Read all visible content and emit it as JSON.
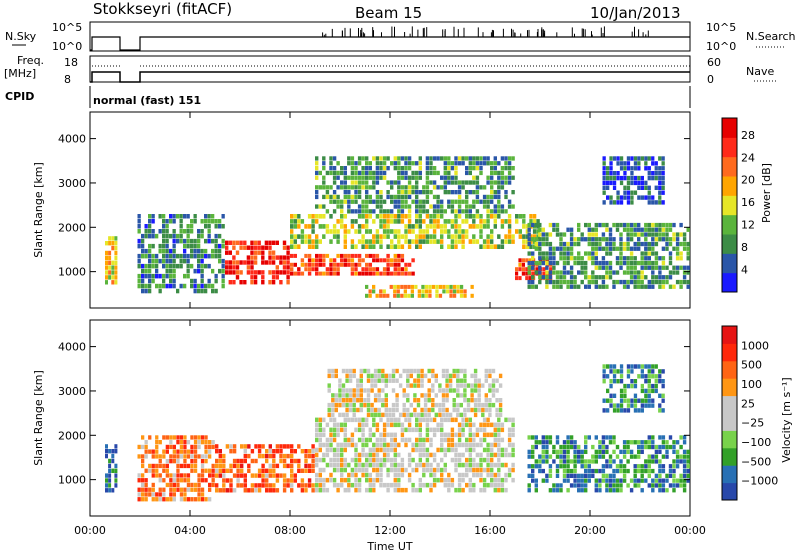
{
  "header": {
    "station": "Stokkseyri (fitACF)",
    "beam": "Beam 15",
    "date": "10/Jan/2013"
  },
  "status_panels": {
    "nsky_label": "N.Sky",
    "nsky_ticks": [
      "10^5",
      "10^0"
    ],
    "nsearch_label": "N.Search",
    "nsearch_ticks": [
      "10^5",
      "10^0"
    ],
    "freq_label": "Freq.",
    "freq_unit": "[MHz]",
    "freq_ticks": [
      "18",
      "8"
    ],
    "nave_label": "Nave",
    "nave_ticks": [
      "60",
      "0"
    ],
    "cpid_label": "CPID",
    "cpid_value": "normal (fast) 151"
  },
  "colors": {
    "power_scale": [
      "#1a1aff",
      "#2a56a8",
      "#3c8c46",
      "#5ab43c",
      "#e6e628",
      "#ffa500",
      "#ff6a1e",
      "#ff2a1a",
      "#e60000"
    ],
    "velocity_scale": [
      "#2848aa",
      "#2870b4",
      "#32a028",
      "#78d24b",
      "#c8c8c8",
      "#c8c8c8",
      "#ff9614",
      "#ff6414",
      "#ff280a",
      "#e61414"
    ]
  },
  "chart_data": [
    {
      "type": "heatmap",
      "name": "power",
      "ylabel": "Slant Range [km]",
      "xlabel": "Time UT",
      "x_ticks": [
        "00:00",
        "04:00",
        "08:00",
        "12:00",
        "16:00",
        "20:00",
        "00:00"
      ],
      "xlim_hours": [
        0,
        24
      ],
      "y_ticks": [
        1000,
        2000,
        3000,
        4000
      ],
      "ylim_km": [
        180,
        4600
      ],
      "colorbar_label": "Power [dB]",
      "colorbar_ticks": [
        4,
        8,
        12,
        16,
        20,
        24,
        28
      ],
      "colorbar_range": [
        0,
        31
      ],
      "echo_regions": [
        {
          "t0": 0.6,
          "t1": 1.1,
          "r0": 700,
          "r1": 1800,
          "level": 0.55
        },
        {
          "t0": 1.9,
          "t1": 5.4,
          "r0": 500,
          "r1": 2300,
          "level": 0.25
        },
        {
          "t0": 5.4,
          "t1": 8.0,
          "r0": 700,
          "r1": 1700,
          "level": 0.85
        },
        {
          "t0": 8.0,
          "t1": 13.0,
          "r0": 900,
          "r1": 1400,
          "level": 0.8
        },
        {
          "t0": 8.0,
          "t1": 18.0,
          "r0": 1500,
          "r1": 2300,
          "level": 0.45
        },
        {
          "t0": 9.0,
          "t1": 17.0,
          "r0": 2300,
          "r1": 3600,
          "level": 0.3
        },
        {
          "t0": 11.0,
          "t1": 15.5,
          "r0": 400,
          "r1": 700,
          "level": 0.55
        },
        {
          "t0": 17.0,
          "t1": 18.5,
          "r0": 800,
          "r1": 1300,
          "level": 0.8
        },
        {
          "t0": 17.5,
          "t1": 24.0,
          "r0": 600,
          "r1": 2100,
          "level": 0.3
        },
        {
          "t0": 20.5,
          "t1": 23.0,
          "r0": 2500,
          "r1": 3600,
          "level": 0.15
        }
      ]
    },
    {
      "type": "heatmap",
      "name": "velocity",
      "ylabel": "Slant Range [km]",
      "xlabel": "Time UT",
      "x_ticks": [
        "00:00",
        "04:00",
        "08:00",
        "12:00",
        "16:00",
        "20:00",
        "00:00"
      ],
      "xlim_hours": [
        0,
        24
      ],
      "y_ticks": [
        1000,
        2000,
        3000,
        4000
      ],
      "ylim_km": [
        180,
        4600
      ],
      "colorbar_label": "Velocity [m s⁻¹]",
      "colorbar_ticks": [
        "1000",
        "500",
        "100",
        "25",
        "−25",
        "−100",
        "−500",
        "−1000"
      ],
      "echo_regions": [
        {
          "t0": 0.6,
          "t1": 1.1,
          "r0": 700,
          "r1": 1800,
          "level": 0.1
        },
        {
          "t0": 1.9,
          "t1": 5.0,
          "r0": 500,
          "r1": 2000,
          "level": 0.7
        },
        {
          "t0": 5.0,
          "t1": 9.0,
          "r0": 700,
          "r1": 1800,
          "level": 0.75
        },
        {
          "t0": 9.0,
          "t1": 17.0,
          "r0": 700,
          "r1": 2400,
          "level": 0.5
        },
        {
          "t0": 9.5,
          "t1": 16.5,
          "r0": 2400,
          "r1": 3500,
          "level": 0.5
        },
        {
          "t0": 17.5,
          "t1": 24.0,
          "r0": 700,
          "r1": 2000,
          "level": 0.2
        },
        {
          "t0": 20.5,
          "t1": 23.0,
          "r0": 2500,
          "r1": 3600,
          "level": 0.2
        }
      ]
    }
  ]
}
